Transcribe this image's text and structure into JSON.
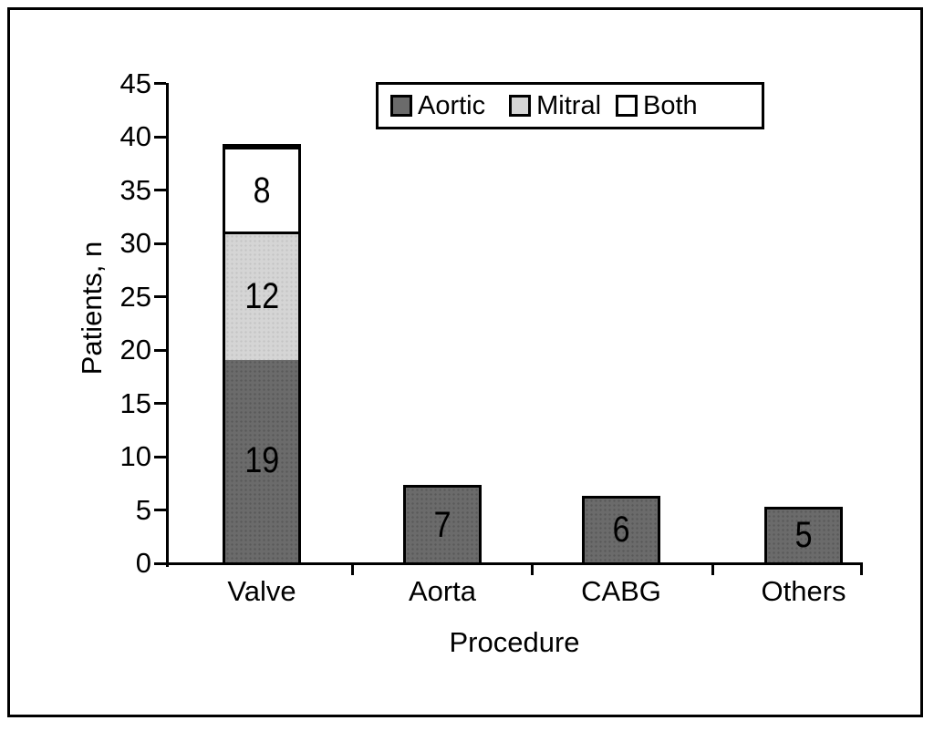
{
  "chart_data": {
    "type": "bar",
    "stacked": true,
    "title": "",
    "xlabel": "Procedure",
    "ylabel": "Patients, n",
    "categories": [
      "Valve",
      "Aorta",
      "CABG",
      "Others"
    ],
    "series": [
      {
        "name": "Aortic",
        "color": "#6b6b6b",
        "values": [
          19,
          7,
          6,
          5
        ]
      },
      {
        "name": "Mitral",
        "color": "#d5d5d5",
        "values": [
          12,
          0,
          0,
          0
        ]
      },
      {
        "name": "Both",
        "color": "#ffffff",
        "values": [
          8,
          0,
          0,
          0
        ]
      }
    ],
    "totals": [
      39,
      7,
      6,
      5
    ],
    "ylim": [
      0,
      45
    ],
    "yticks": [
      0,
      5,
      10,
      15,
      20,
      25,
      30,
      35,
      40,
      45
    ],
    "grid": false,
    "legend_position": "top-center-inside",
    "bar_value_labels": true,
    "axis_color": "#000000",
    "text_color": "#000000"
  }
}
